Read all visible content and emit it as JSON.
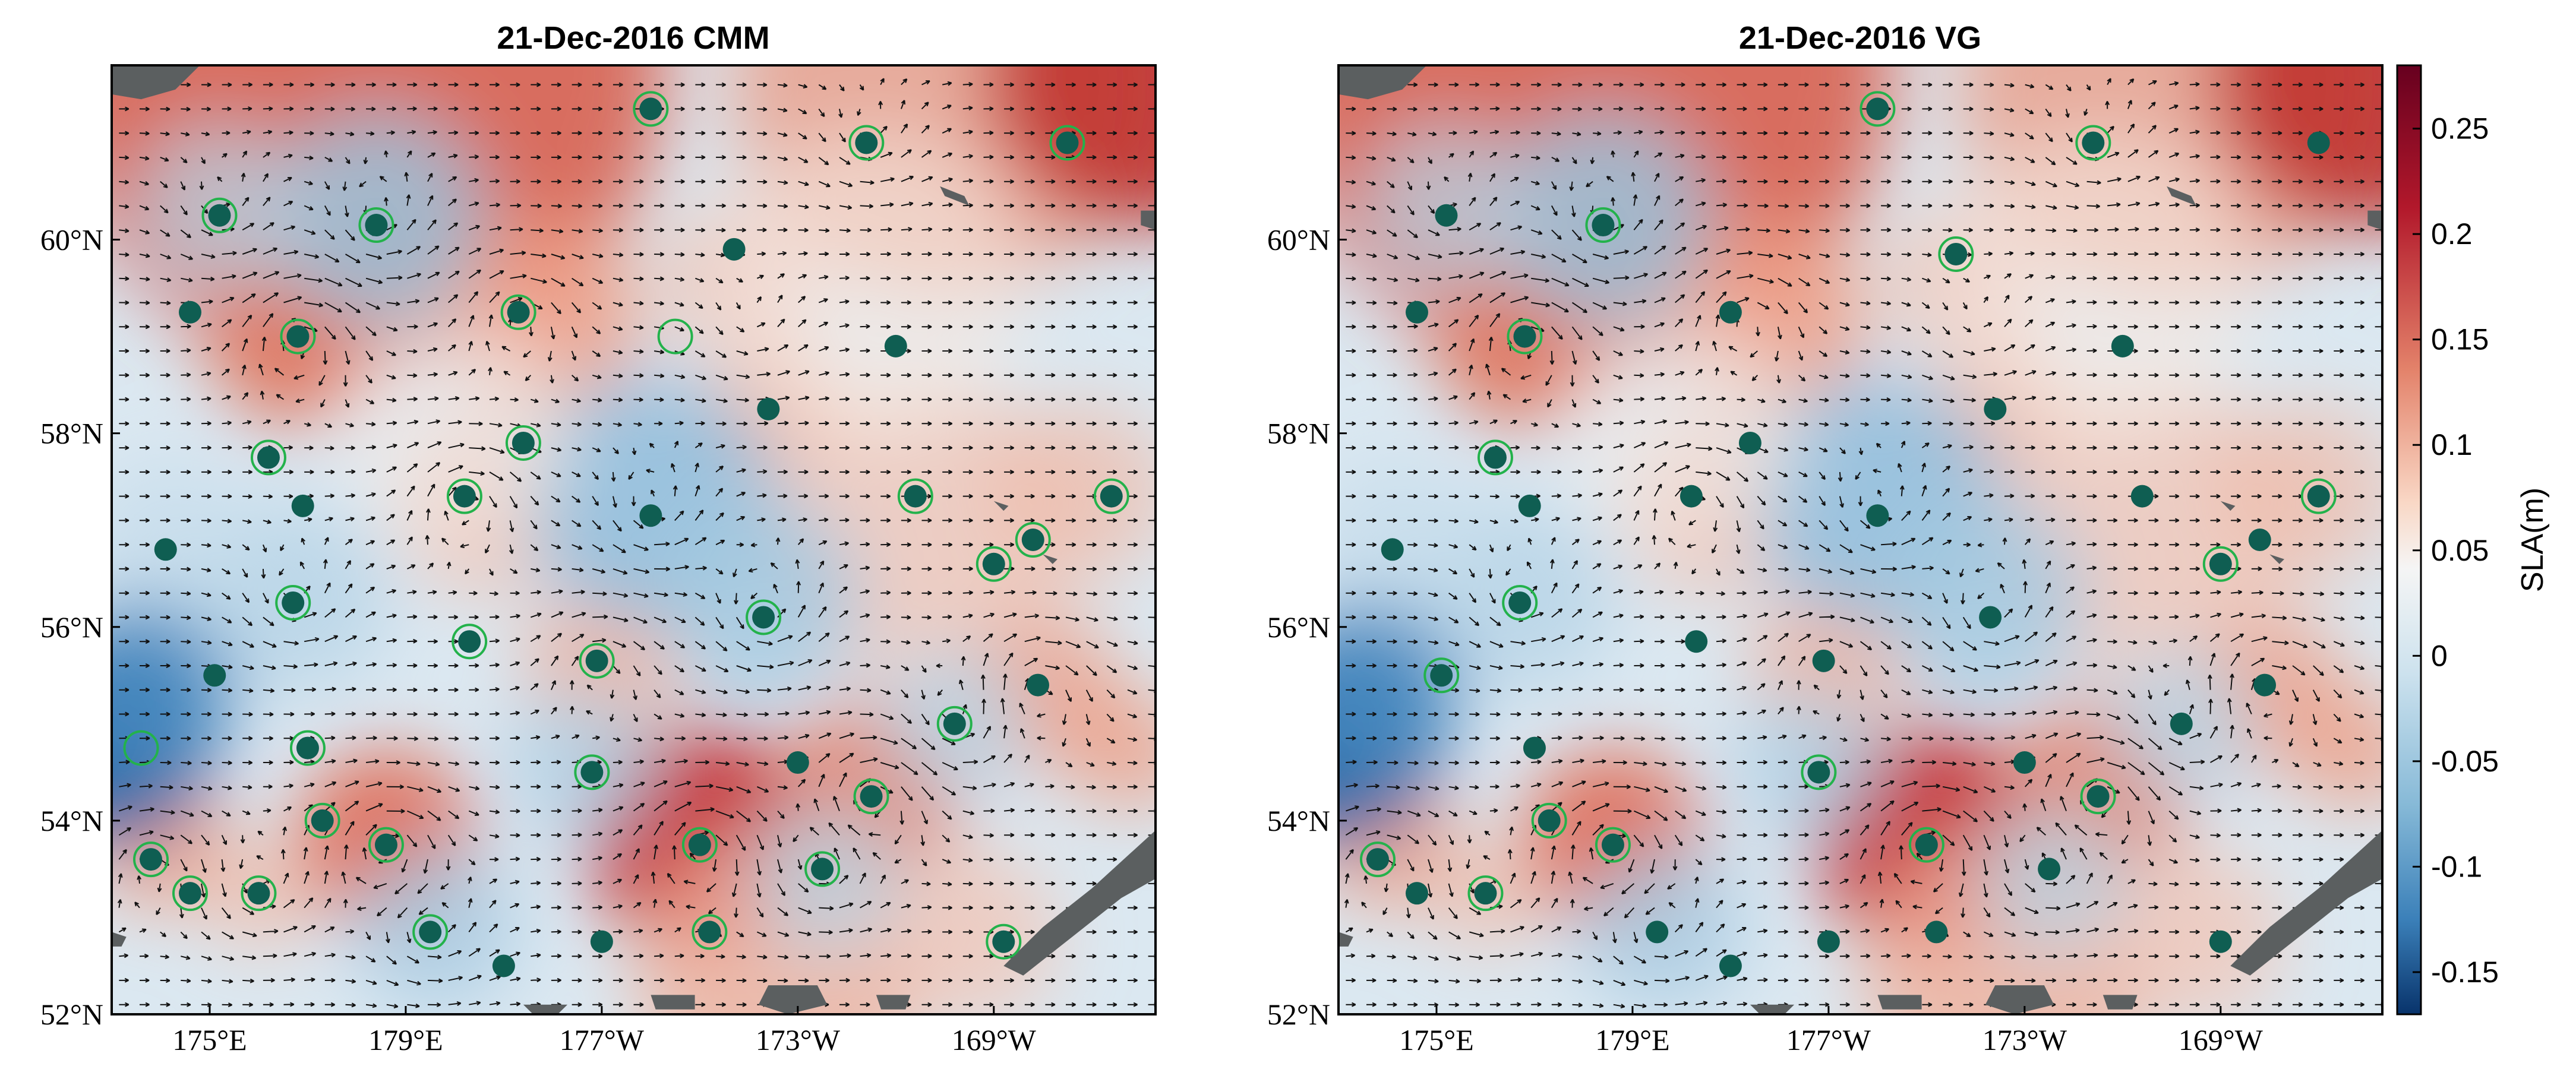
{
  "chart_data": [
    {
      "type": "heatmap",
      "title": "21-Dec-2016 CMM",
      "x_tick_labels": [
        "175°E",
        "179°E",
        "177°W",
        "173°W",
        "169°W"
      ],
      "y_tick_labels": [
        "52°N",
        "54°N",
        "56°N",
        "58°N",
        "60°N"
      ],
      "xlim_lon_east": [
        173.0,
        194.3
      ],
      "ylim_lat": [
        52.0,
        61.8
      ],
      "eddies": [
        {
          "lon": 175.2,
          "lat": 60.25,
          "ring": true
        },
        {
          "lon": 178.4,
          "lat": 60.15,
          "ring": true
        },
        {
          "lon": 184.0,
          "lat": 61.35,
          "ring": true
        },
        {
          "lon": 188.4,
          "lat": 61.0,
          "ring": true
        },
        {
          "lon": 192.5,
          "lat": 61.0,
          "ring": true
        },
        {
          "lon": 174.6,
          "lat": 59.25,
          "ring": false
        },
        {
          "lon": 176.8,
          "lat": 59.0,
          "ring": true
        },
        {
          "lon": 181.3,
          "lat": 59.25,
          "ring": true
        },
        {
          "lon": 184.5,
          "lat": 59.0,
          "ring": true,
          "hollow": true
        },
        {
          "lon": 185.7,
          "lat": 59.9,
          "ring": false
        },
        {
          "lon": 189.0,
          "lat": 58.9,
          "ring": false
        },
        {
          "lon": 186.4,
          "lat": 58.25,
          "ring": false
        },
        {
          "lon": 176.2,
          "lat": 57.75,
          "ring": true
        },
        {
          "lon": 176.9,
          "lat": 57.25,
          "ring": false
        },
        {
          "lon": 180.2,
          "lat": 57.35,
          "ring": true
        },
        {
          "lon": 181.4,
          "lat": 57.9,
          "ring": true
        },
        {
          "lon": 184.0,
          "lat": 57.15,
          "ring": false
        },
        {
          "lon": 189.4,
          "lat": 57.35,
          "ring": true
        },
        {
          "lon": 193.4,
          "lat": 57.35,
          "ring": true
        },
        {
          "lon": 174.1,
          "lat": 56.8,
          "ring": false
        },
        {
          "lon": 191.0,
          "lat": 56.65,
          "ring": true
        },
        {
          "lon": 191.8,
          "lat": 56.9,
          "ring": true
        },
        {
          "lon": 176.7,
          "lat": 56.25,
          "ring": true
        },
        {
          "lon": 180.3,
          "lat": 55.85,
          "ring": true
        },
        {
          "lon": 186.3,
          "lat": 56.1,
          "ring": true
        },
        {
          "lon": 182.9,
          "lat": 55.65,
          "ring": true
        },
        {
          "lon": 175.1,
          "lat": 55.5,
          "ring": false
        },
        {
          "lon": 190.2,
          "lat": 55.0,
          "ring": true
        },
        {
          "lon": 191.9,
          "lat": 55.4,
          "ring": false
        },
        {
          "lon": 173.6,
          "lat": 54.75,
          "ring": true,
          "hollow": true
        },
        {
          "lon": 177.0,
          "lat": 54.75,
          "ring": true
        },
        {
          "lon": 182.8,
          "lat": 54.5,
          "ring": true
        },
        {
          "lon": 187.0,
          "lat": 54.6,
          "ring": false
        },
        {
          "lon": 188.5,
          "lat": 54.25,
          "ring": true
        },
        {
          "lon": 177.3,
          "lat": 54.0,
          "ring": true
        },
        {
          "lon": 178.6,
          "lat": 53.75,
          "ring": true
        },
        {
          "lon": 185.0,
          "lat": 53.75,
          "ring": true
        },
        {
          "lon": 173.8,
          "lat": 53.6,
          "ring": true
        },
        {
          "lon": 187.5,
          "lat": 53.5,
          "ring": true
        },
        {
          "lon": 174.6,
          "lat": 53.25,
          "ring": true
        },
        {
          "lon": 176.0,
          "lat": 53.25,
          "ring": true
        },
        {
          "lon": 179.5,
          "lat": 52.85,
          "ring": true
        },
        {
          "lon": 183.0,
          "lat": 52.75,
          "ring": false
        },
        {
          "lon": 185.2,
          "lat": 52.85,
          "ring": true
        },
        {
          "lon": 181.0,
          "lat": 52.5,
          "ring": false
        },
        {
          "lon": 191.2,
          "lat": 52.75,
          "ring": true
        }
      ]
    },
    {
      "type": "heatmap",
      "title": "21-Dec-2016 VG",
      "x_tick_labels": [
        "175°E",
        "179°E",
        "177°W",
        "173°W",
        "169°W"
      ],
      "y_tick_labels": [
        "52°N",
        "54°N",
        "56°N",
        "58°N",
        "60°N"
      ],
      "xlim_lon_east": [
        173.0,
        194.3
      ],
      "ylim_lat": [
        52.0,
        61.8
      ],
      "eddies": [
        {
          "lon": 175.2,
          "lat": 60.25,
          "ring": false
        },
        {
          "lon": 178.4,
          "lat": 60.15,
          "ring": true
        },
        {
          "lon": 184.0,
          "lat": 61.35,
          "ring": true
        },
        {
          "lon": 188.4,
          "lat": 61.0,
          "ring": true
        },
        {
          "lon": 193.0,
          "lat": 61.0,
          "ring": false
        },
        {
          "lon": 174.6,
          "lat": 59.25,
          "ring": false
        },
        {
          "lon": 176.8,
          "lat": 59.0,
          "ring": true
        },
        {
          "lon": 181.0,
          "lat": 59.25,
          "ring": false
        },
        {
          "lon": 185.6,
          "lat": 59.85,
          "ring": true
        },
        {
          "lon": 189.0,
          "lat": 58.9,
          "ring": false
        },
        {
          "lon": 186.4,
          "lat": 58.25,
          "ring": false
        },
        {
          "lon": 176.2,
          "lat": 57.75,
          "ring": true
        },
        {
          "lon": 176.9,
          "lat": 57.25,
          "ring": false
        },
        {
          "lon": 180.2,
          "lat": 57.35,
          "ring": false
        },
        {
          "lon": 181.4,
          "lat": 57.9,
          "ring": false
        },
        {
          "lon": 184.0,
          "lat": 57.15,
          "ring": false
        },
        {
          "lon": 189.4,
          "lat": 57.35,
          "ring": false
        },
        {
          "lon": 193.0,
          "lat": 57.35,
          "ring": true
        },
        {
          "lon": 174.1,
          "lat": 56.8,
          "ring": false
        },
        {
          "lon": 191.0,
          "lat": 56.65,
          "ring": true
        },
        {
          "lon": 191.8,
          "lat": 56.9,
          "ring": false
        },
        {
          "lon": 176.7,
          "lat": 56.25,
          "ring": true
        },
        {
          "lon": 180.3,
          "lat": 55.85,
          "ring": false
        },
        {
          "lon": 186.3,
          "lat": 56.1,
          "ring": false
        },
        {
          "lon": 182.9,
          "lat": 55.65,
          "ring": false
        },
        {
          "lon": 175.1,
          "lat": 55.5,
          "ring": true
        },
        {
          "lon": 190.2,
          "lat": 55.0,
          "ring": false
        },
        {
          "lon": 191.9,
          "lat": 55.4,
          "ring": false
        },
        {
          "lon": 177.0,
          "lat": 54.75,
          "ring": false
        },
        {
          "lon": 182.8,
          "lat": 54.5,
          "ring": true
        },
        {
          "lon": 187.0,
          "lat": 54.6,
          "ring": false
        },
        {
          "lon": 188.5,
          "lat": 54.25,
          "ring": true
        },
        {
          "lon": 177.3,
          "lat": 54.0,
          "ring": true
        },
        {
          "lon": 178.6,
          "lat": 53.75,
          "ring": true
        },
        {
          "lon": 185.0,
          "lat": 53.75,
          "ring": true
        },
        {
          "lon": 173.8,
          "lat": 53.6,
          "ring": true
        },
        {
          "lon": 187.5,
          "lat": 53.5,
          "ring": false
        },
        {
          "lon": 174.6,
          "lat": 53.25,
          "ring": false
        },
        {
          "lon": 176.0,
          "lat": 53.25,
          "ring": true
        },
        {
          "lon": 179.5,
          "lat": 52.85,
          "ring": false
        },
        {
          "lon": 183.0,
          "lat": 52.75,
          "ring": false
        },
        {
          "lon": 185.2,
          "lat": 52.85,
          "ring": false
        },
        {
          "lon": 181.0,
          "lat": 52.5,
          "ring": false
        },
        {
          "lon": 191.0,
          "lat": 52.75,
          "ring": false
        }
      ]
    }
  ],
  "colorbar": {
    "label": "SLA(m)",
    "tick_labels": [
      "0.25",
      "0.2",
      "0.15",
      "0.1",
      "0.05",
      "0",
      "-0.05",
      "-0.1",
      "-0.15"
    ],
    "range": [
      -0.17,
      0.28
    ]
  },
  "colors": {
    "eddy_fill": "#0f5e52",
    "eddy_ring": "#23b24b",
    "land": "#5b5f60",
    "high": "#8b0b24",
    "low": "#0c3c78",
    "mid": "#f4f4f4"
  }
}
